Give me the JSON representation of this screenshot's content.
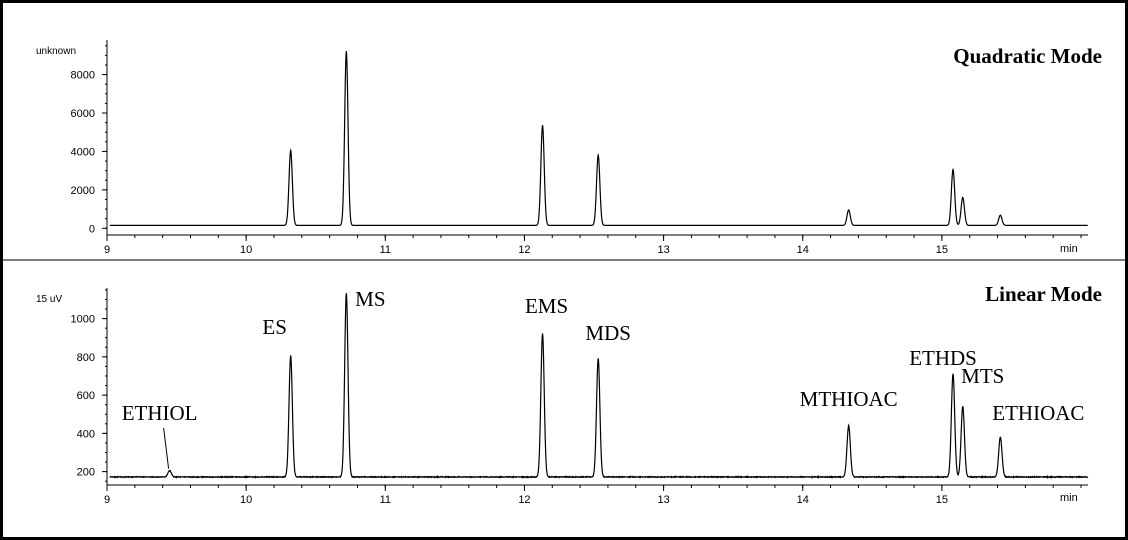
{
  "chart_data": [
    {
      "type": "line",
      "title": "Quadratic Mode",
      "ylabel": "unknown",
      "xlabel": "min",
      "xlim": [
        9,
        16.05
      ],
      "ylim": [
        -350,
        9800
      ],
      "xticks": [
        9,
        10,
        11,
        12,
        13,
        14,
        15
      ],
      "yticks": [
        0,
        2000,
        4000,
        6000,
        8000
      ],
      "baseline": 150,
      "series": [
        {
          "peaks": [
            {
              "x": 10.32,
              "y": 4050
            },
            {
              "x": 10.72,
              "y": 9200
            },
            {
              "x": 12.13,
              "y": 5350
            },
            {
              "x": 12.53,
              "y": 3800
            },
            {
              "x": 14.33,
              "y": 950
            },
            {
              "x": 15.08,
              "y": 3050
            },
            {
              "x": 15.15,
              "y": 1600
            },
            {
              "x": 15.42,
              "y": 680
            }
          ]
        }
      ],
      "annotations": []
    },
    {
      "type": "line",
      "title": "Linear Mode",
      "ylabel": "15 uV",
      "xlabel": "min",
      "xlim": [
        9,
        16.05
      ],
      "ylim": [
        130,
        1160
      ],
      "xticks": [
        9,
        10,
        11,
        12,
        13,
        14,
        15
      ],
      "yticks": [
        200,
        400,
        600,
        800,
        1000
      ],
      "baseline": 172,
      "series": [
        {
          "peaks": [
            {
              "x": 9.45,
              "y": 205
            },
            {
              "x": 10.32,
              "y": 805
            },
            {
              "x": 10.72,
              "y": 1130
            },
            {
              "x": 12.13,
              "y": 920
            },
            {
              "x": 12.53,
              "y": 790
            },
            {
              "x": 14.33,
              "y": 440
            },
            {
              "x": 15.08,
              "y": 710
            },
            {
              "x": 15.15,
              "y": 540
            },
            {
              "x": 15.42,
              "y": 380
            }
          ]
        }
      ],
      "annotations": [
        {
          "text": "ETHIOL",
          "x": 9.45
        },
        {
          "text": "ES",
          "x": 10.32
        },
        {
          "text": "MS",
          "x": 10.72
        },
        {
          "text": "EMS",
          "x": 12.13
        },
        {
          "text": "MDS",
          "x": 12.53
        },
        {
          "text": "MTHIOAC",
          "x": 14.33
        },
        {
          "text": "ETHDS",
          "x": 15.08
        },
        {
          "text": "MTS",
          "x": 15.15
        },
        {
          "text": "ETHIOAC",
          "x": 15.42
        }
      ]
    }
  ]
}
